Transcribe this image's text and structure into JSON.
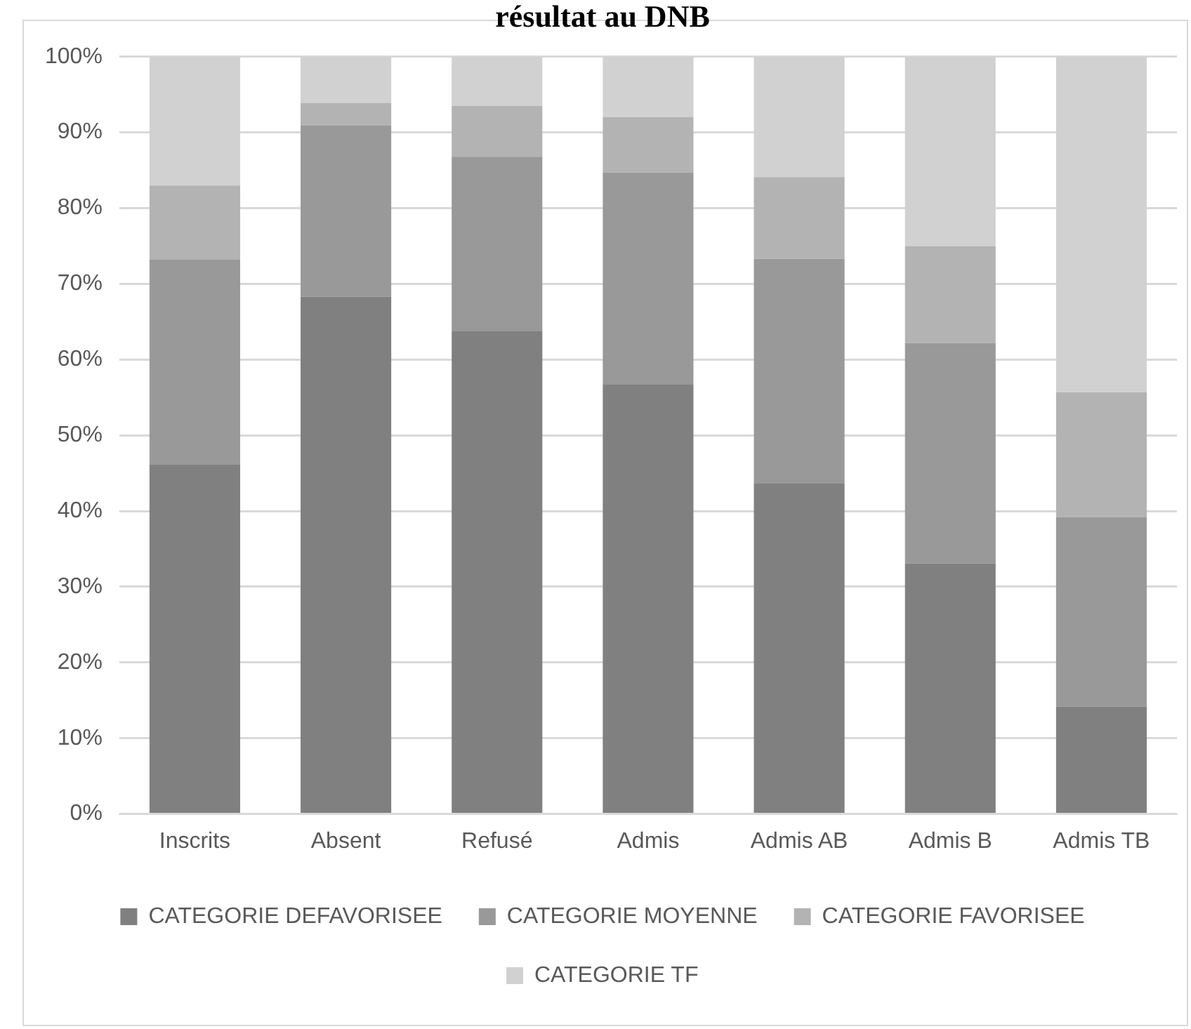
{
  "chart_data": {
    "type": "bar",
    "stacked": true,
    "title": "résultat au DNB",
    "categories": [
      "Inscrits",
      "Absent",
      "Refusé",
      "Admis",
      "Admis AB",
      "Admis B",
      "Admis TB"
    ],
    "series": [
      {
        "name": "CATEGORIE DEFAVORISEE",
        "color": "#808080",
        "values": [
          46.2,
          68.3,
          63.8,
          56.7,
          43.7,
          33.1,
          14.2
        ]
      },
      {
        "name": "CATEGORIE MOYENNE",
        "color": "#999999",
        "values": [
          27,
          22.6,
          23,
          28,
          29.6,
          29.1,
          25
        ]
      },
      {
        "name": "CATEGORIE FAVORISEE",
        "color": "#b3b3b3",
        "values": [
          9.8,
          3,
          6.7,
          7.3,
          10.8,
          12.8,
          16.5
        ]
      },
      {
        "name": "CATEGORIE TF",
        "color": "#d1d1d1",
        "values": [
          17,
          6.1,
          6.5,
          8,
          15.9,
          25,
          44.3
        ]
      }
    ],
    "ylim": [
      0,
      100
    ],
    "yticks": [
      {
        "value": 0,
        "label": "0%"
      },
      {
        "value": 10,
        "label": "10%"
      },
      {
        "value": 20,
        "label": "20%"
      },
      {
        "value": 30,
        "label": "30%"
      },
      {
        "value": 40,
        "label": "40%"
      },
      {
        "value": 50,
        "label": "50%"
      },
      {
        "value": 60,
        "label": "60%"
      },
      {
        "value": 70,
        "label": "70%"
      },
      {
        "value": 80,
        "label": "80%"
      },
      {
        "value": 90,
        "label": "90%"
      },
      {
        "value": 100,
        "label": "100%"
      }
    ],
    "grid": "y",
    "legend": "bottom"
  }
}
